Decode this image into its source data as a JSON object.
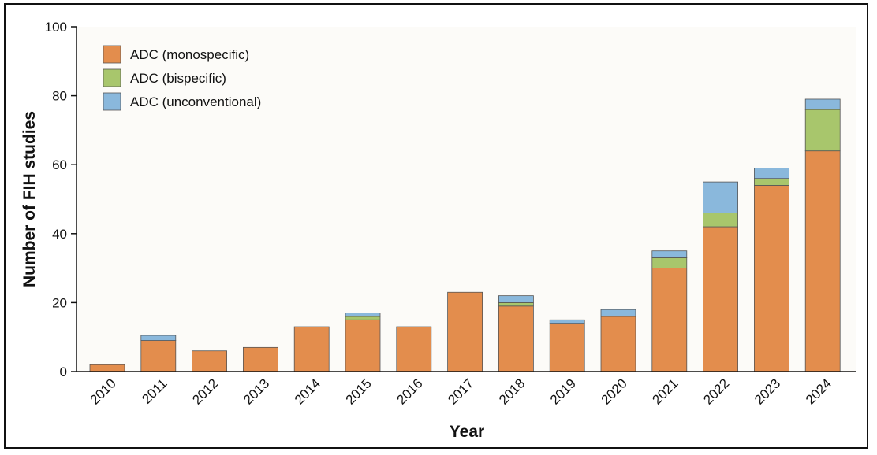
{
  "chart_data": {
    "type": "bar",
    "stacked": true,
    "categories": [
      "2010",
      "2011",
      "2012",
      "2013",
      "2014",
      "2015",
      "2016",
      "2017",
      "2018",
      "2019",
      "2020",
      "2021",
      "2022",
      "2023",
      "2024"
    ],
    "series": [
      {
        "name": "ADC (monospecific)",
        "color": "#e38d4d",
        "values": [
          2,
          9,
          6,
          7,
          13,
          15,
          13,
          23,
          19,
          14,
          16,
          30,
          42,
          54,
          64
        ]
      },
      {
        "name": "ADC (bispecific)",
        "color": "#a8c66c",
        "values": [
          0,
          0,
          0,
          0,
          0,
          1,
          0,
          0,
          1,
          0,
          0,
          3,
          4,
          2,
          12
        ]
      },
      {
        "name": "ADC (unconventional)",
        "color": "#8ab8dc",
        "values": [
          0,
          1.5,
          0,
          0,
          0,
          1,
          0,
          0,
          2,
          1,
          2,
          2,
          9,
          3,
          3
        ]
      }
    ],
    "xlabel": "Year",
    "ylabel": "Number of FIH studies",
    "ylim": [
      0,
      100
    ],
    "yticks": [
      0,
      20,
      40,
      60,
      80,
      100
    ],
    "legend_position": "top-left",
    "grid": false,
    "background": "#fcfbf8"
  }
}
